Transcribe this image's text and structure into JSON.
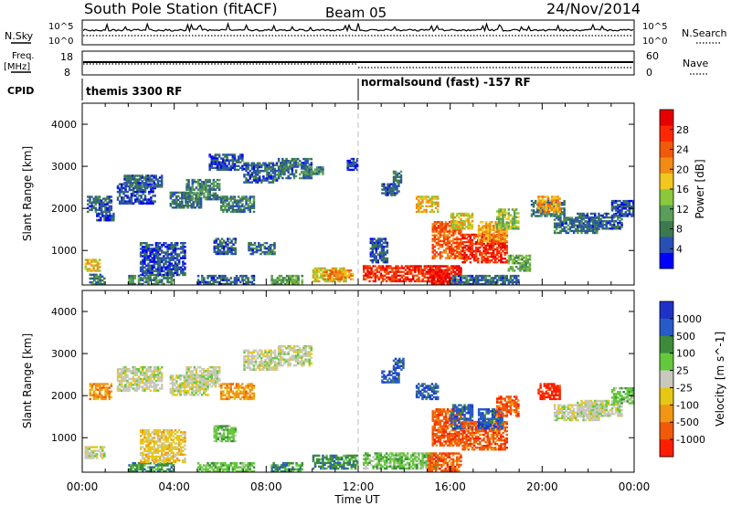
{
  "header": {
    "title": "South Pole Station (fitACF)",
    "beam": "Beam 05",
    "date": "24/Nov/2014"
  },
  "nsky_panel": {
    "left_label": "N.Sky",
    "right_label": "N.Search",
    "left_ticks": [
      "10^5",
      "10^0"
    ],
    "right_ticks": [
      "10^5",
      "10^0"
    ]
  },
  "freq_panel": {
    "left_label_1": "Freq.",
    "left_label_2": "[MHz]",
    "right_label": "Nave",
    "left_ticks": [
      "18",
      "8"
    ],
    "right_ticks": [
      "60",
      "0"
    ]
  },
  "cpid_panel": {
    "label": "CPID",
    "modes": [
      {
        "name": "themis 3300 RF",
        "start_hour": 0
      },
      {
        "name": "normalsound (fast) -157 RF",
        "start_hour": 12
      }
    ]
  },
  "colors": {
    "power": [
      "#0000ff",
      "#2850b4",
      "#3c7850",
      "#5a9e5a",
      "#8cc83c",
      "#f0c81e",
      "#f08c14",
      "#f05a0a",
      "#ff2800",
      "#e60000"
    ],
    "velocity": [
      "#1e32c8",
      "#285ac8",
      "#3c8c3c",
      "#64c83c",
      "#c8c8bc",
      "#e6c814",
      "#f09614",
      "#f05a0a",
      "#ff1e00"
    ]
  },
  "chart_data": [
    {
      "type": "heatmap",
      "name": "Power",
      "ylabel": "Slant Range [km]",
      "xlim": [
        0,
        24
      ],
      "ylim": [
        180,
        4500
      ],
      "y_ticks": [
        1000,
        2000,
        3000,
        4000
      ],
      "colorbar": {
        "label": "Power [dB]",
        "range": [
          0,
          32
        ],
        "ticks": [
          4,
          8,
          12,
          16,
          20,
          24,
          28
        ]
      },
      "blobs": [
        {
          "t0": 0.3,
          "t1": 1.0,
          "r0": 180,
          "r1": 450,
          "v": 8
        },
        {
          "t0": 0.1,
          "t1": 0.8,
          "r0": 500,
          "r1": 800,
          "v": 18
        },
        {
          "t0": 0.2,
          "t1": 1.3,
          "r0": 1900,
          "r1": 2300,
          "v": 6
        },
        {
          "t0": 0.6,
          "t1": 1.4,
          "r0": 1700,
          "r1": 1900,
          "v": 4
        },
        {
          "t0": 1.5,
          "t1": 3.2,
          "r0": 2100,
          "r1": 2600,
          "v": 5
        },
        {
          "t0": 1.8,
          "t1": 3.5,
          "r0": 2500,
          "r1": 2800,
          "v": 6
        },
        {
          "t0": 2.0,
          "t1": 4.0,
          "r0": 180,
          "r1": 420,
          "v": 9
        },
        {
          "t0": 2.5,
          "t1": 4.5,
          "r0": 400,
          "r1": 1200,
          "v": 5
        },
        {
          "t0": 3.8,
          "t1": 5.2,
          "r0": 2000,
          "r1": 2400,
          "v": 7
        },
        {
          "t0": 4.5,
          "t1": 6.0,
          "r0": 2200,
          "r1": 2700,
          "v": 9
        },
        {
          "t0": 5.0,
          "t1": 7.5,
          "r0": 180,
          "r1": 420,
          "v": 6
        },
        {
          "t0": 5.5,
          "t1": 7.0,
          "r0": 2900,
          "r1": 3300,
          "v": 5
        },
        {
          "t0": 5.7,
          "t1": 6.7,
          "r0": 900,
          "r1": 1300,
          "v": 6
        },
        {
          "t0": 6.0,
          "t1": 7.5,
          "r0": 1900,
          "r1": 2300,
          "v": 8
        },
        {
          "t0": 7.0,
          "t1": 8.5,
          "r0": 2600,
          "r1": 3100,
          "v": 6
        },
        {
          "t0": 7.2,
          "t1": 8.4,
          "r0": 900,
          "r1": 1200,
          "v": 7
        },
        {
          "t0": 8.2,
          "t1": 9.6,
          "r0": 180,
          "r1": 420,
          "v": 11
        },
        {
          "t0": 8.5,
          "t1": 10.0,
          "r0": 2700,
          "r1": 3200,
          "v": 7
        },
        {
          "t0": 9.5,
          "t1": 10.5,
          "r0": 2800,
          "r1": 3000,
          "v": 9
        },
        {
          "t0": 10.0,
          "t1": 11.5,
          "r0": 250,
          "r1": 600,
          "v": 17
        },
        {
          "t0": 10.5,
          "t1": 11.8,
          "r0": 300,
          "r1": 550,
          "v": 22
        },
        {
          "t0": 11.5,
          "t1": 12.0,
          "r0": 2900,
          "r1": 3200,
          "v": 4
        },
        {
          "t0": 12.2,
          "t1": 15.5,
          "r0": 250,
          "r1": 650,
          "v": 27
        },
        {
          "t0": 12.5,
          "t1": 13.3,
          "r0": 700,
          "r1": 1300,
          "v": 5
        },
        {
          "t0": 13.0,
          "t1": 13.8,
          "r0": 2300,
          "r1": 2600,
          "v": 6
        },
        {
          "t0": 13.5,
          "t1": 13.9,
          "r0": 2600,
          "r1": 2900,
          "v": 8
        },
        {
          "t0": 14.5,
          "t1": 15.5,
          "r0": 1900,
          "r1": 2300,
          "v": 18
        },
        {
          "t0": 15.0,
          "t1": 16.5,
          "r0": 200,
          "r1": 650,
          "v": 29
        },
        {
          "t0": 15.2,
          "t1": 16.5,
          "r0": 800,
          "r1": 1700,
          "v": 24
        },
        {
          "t0": 16.0,
          "t1": 17.0,
          "r0": 1500,
          "r1": 1900,
          "v": 17
        },
        {
          "t0": 16.5,
          "t1": 18.5,
          "r0": 700,
          "r1": 1400,
          "v": 27
        },
        {
          "t0": 17.2,
          "t1": 18.5,
          "r0": 1200,
          "r1": 1700,
          "v": 20
        },
        {
          "t0": 18.0,
          "t1": 19.0,
          "r0": 1500,
          "r1": 2000,
          "v": 14
        },
        {
          "t0": 18.5,
          "t1": 19.5,
          "r0": 500,
          "r1": 900,
          "v": 12
        },
        {
          "t0": 16.0,
          "t1": 19.0,
          "r0": 180,
          "r1": 420,
          "v": 7
        },
        {
          "t0": 19.5,
          "t1": 21.0,
          "r0": 1800,
          "r1": 2200,
          "v": 8
        },
        {
          "t0": 20.5,
          "t1": 22.5,
          "r0": 1400,
          "r1": 1800,
          "v": 7
        },
        {
          "t0": 21.5,
          "t1": 23.5,
          "r0": 1500,
          "r1": 1900,
          "v": 6
        },
        {
          "t0": 23.0,
          "t1": 24.0,
          "r0": 1800,
          "r1": 2200,
          "v": 5
        },
        {
          "t0": 19.8,
          "t1": 20.8,
          "r0": 1900,
          "r1": 2300,
          "v": 20
        }
      ]
    },
    {
      "type": "heatmap",
      "name": "Velocity",
      "ylabel": "Slant Range [km]",
      "xlabel": "Time UT",
      "x_ticks": [
        "00:00",
        "04:00",
        "08:00",
        "12:00",
        "16:00",
        "20:00",
        "00:00"
      ],
      "xlim": [
        0,
        24
      ],
      "ylim": [
        180,
        4500
      ],
      "y_ticks": [
        1000,
        2000,
        3000,
        4000
      ],
      "colorbar": {
        "label": "Velocity [m s^-1]",
        "tick_labels": [
          "1000",
          "500",
          "100",
          "25",
          "-25",
          "-100",
          "-500",
          "-1000"
        ]
      },
      "blobs": [
        {
          "t0": 0.1,
          "t1": 1.0,
          "r0": 500,
          "r1": 800,
          "v": 4
        },
        {
          "t0": 0.3,
          "t1": 1.3,
          "r0": 1900,
          "r1": 2300,
          "v": 6
        },
        {
          "t0": 1.5,
          "t1": 3.5,
          "r0": 2100,
          "r1": 2700,
          "v": 4
        },
        {
          "t0": 2.0,
          "t1": 4.0,
          "r0": 180,
          "r1": 420,
          "v": 2
        },
        {
          "t0": 2.5,
          "t1": 4.5,
          "r0": 400,
          "r1": 1200,
          "v": 5
        },
        {
          "t0": 3.8,
          "t1": 5.5,
          "r0": 2000,
          "r1": 2500,
          "v": 4
        },
        {
          "t0": 4.5,
          "t1": 6.0,
          "r0": 2200,
          "r1": 2700,
          "v": 4
        },
        {
          "t0": 5.0,
          "t1": 7.5,
          "r0": 180,
          "r1": 420,
          "v": 3
        },
        {
          "t0": 5.7,
          "t1": 6.7,
          "r0": 900,
          "r1": 1300,
          "v": 3
        },
        {
          "t0": 6.0,
          "t1": 7.5,
          "r0": 1900,
          "r1": 2300,
          "v": 6
        },
        {
          "t0": 7.0,
          "t1": 8.5,
          "r0": 2600,
          "r1": 3100,
          "v": 4
        },
        {
          "t0": 8.5,
          "t1": 10.0,
          "r0": 2700,
          "r1": 3200,
          "v": 4
        },
        {
          "t0": 8.2,
          "t1": 9.6,
          "r0": 180,
          "r1": 420,
          "v": 2
        },
        {
          "t0": 10.0,
          "t1": 12.0,
          "r0": 250,
          "r1": 600,
          "v": 2
        },
        {
          "t0": 12.2,
          "t1": 15.5,
          "r0": 250,
          "r1": 650,
          "v": 3
        },
        {
          "t0": 13.0,
          "t1": 13.8,
          "r0": 2300,
          "r1": 2600,
          "v": 1
        },
        {
          "t0": 13.5,
          "t1": 14.0,
          "r0": 2600,
          "r1": 2900,
          "v": 1
        },
        {
          "t0": 14.5,
          "t1": 15.5,
          "r0": 1900,
          "r1": 2300,
          "v": 1
        },
        {
          "t0": 15.0,
          "t1": 16.5,
          "r0": 200,
          "r1": 650,
          "v": 7
        },
        {
          "t0": 15.2,
          "t1": 16.5,
          "r0": 800,
          "r1": 1700,
          "v": 7
        },
        {
          "t0": 16.0,
          "t1": 17.0,
          "r0": 1200,
          "r1": 1800,
          "v": 1
        },
        {
          "t0": 16.5,
          "t1": 18.5,
          "r0": 700,
          "r1": 1400,
          "v": 7
        },
        {
          "t0": 17.2,
          "t1": 18.3,
          "r0": 1200,
          "r1": 1700,
          "v": 1
        },
        {
          "t0": 18.0,
          "t1": 19.0,
          "r0": 1500,
          "r1": 2000,
          "v": 7
        },
        {
          "t0": 19.8,
          "t1": 20.8,
          "r0": 1900,
          "r1": 2300,
          "v": 8
        },
        {
          "t0": 20.5,
          "t1": 22.5,
          "r0": 1400,
          "r1": 1800,
          "v": 4
        },
        {
          "t0": 21.5,
          "t1": 23.5,
          "r0": 1500,
          "r1": 1900,
          "v": 4
        },
        {
          "t0": 23.0,
          "t1": 24.0,
          "r0": 1800,
          "r1": 2200,
          "v": 3
        }
      ]
    }
  ]
}
